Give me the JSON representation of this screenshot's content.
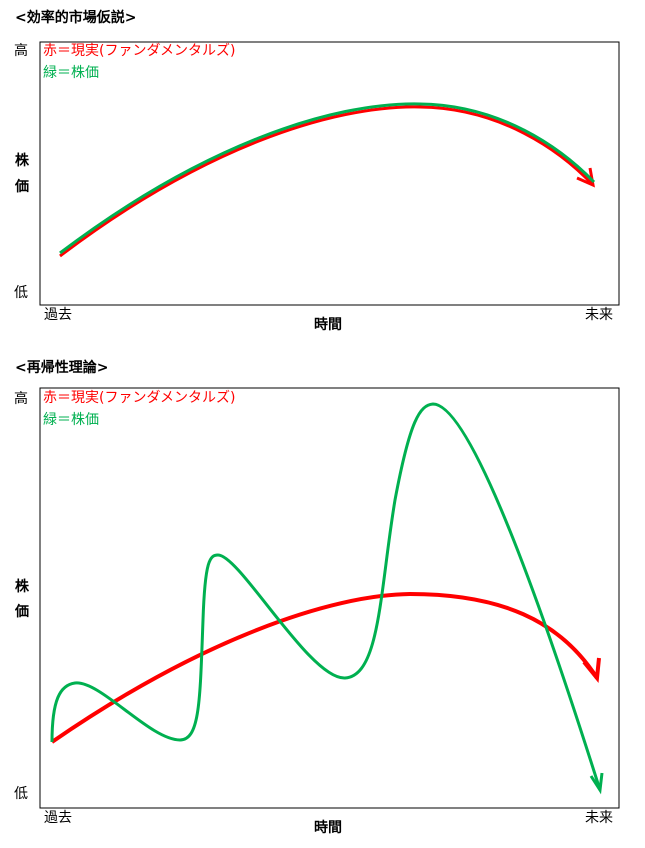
{
  "panels": [
    {
      "title": "<効率的市場仮説>",
      "legend_red": "赤＝現実(ファンダメンタルズ)",
      "legend_green": "緑＝株価",
      "y_high": "高",
      "y_label": [
        "株",
        "価"
      ],
      "y_low": "低",
      "x_start": "過去",
      "x_end": "未来",
      "x_label": "時間"
    },
    {
      "title": "<再帰性理論>",
      "legend_red": "赤＝現実(ファンダメンタルズ)",
      "legend_green": "緑＝株価",
      "y_high": "高",
      "y_label": [
        "株",
        "価"
      ],
      "y_low": "低",
      "x_start": "過去",
      "x_end": "未来",
      "x_label": "時間"
    }
  ]
}
